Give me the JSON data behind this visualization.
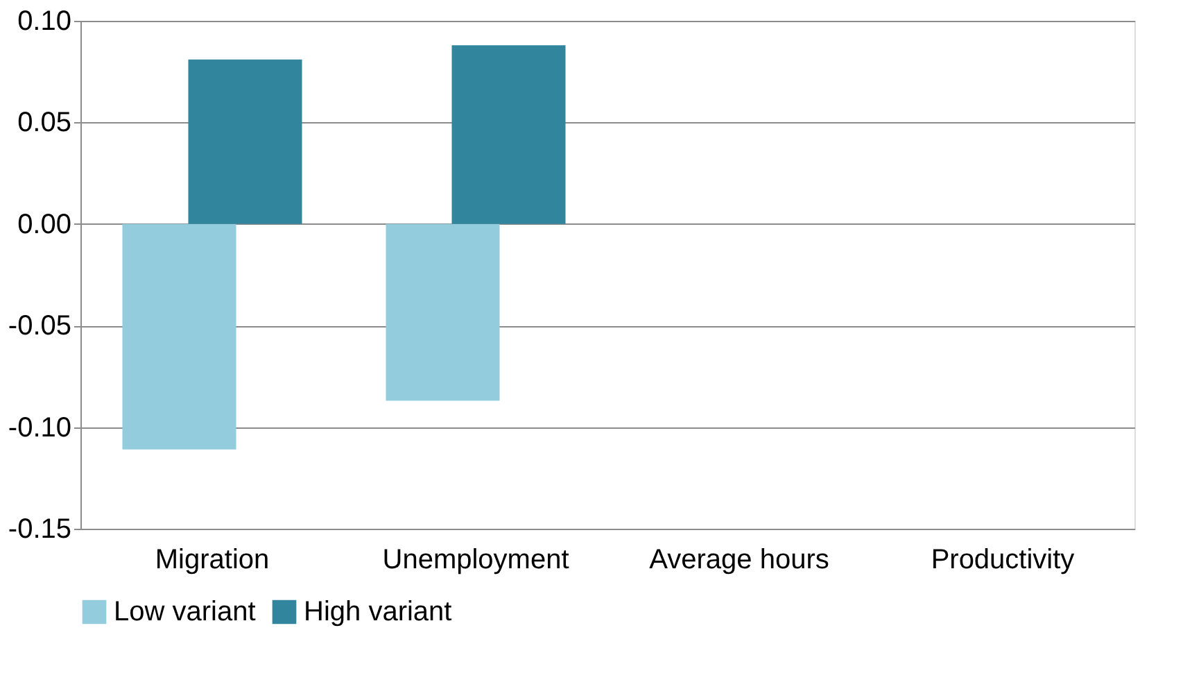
{
  "chart_data": {
    "type": "bar",
    "categories": [
      "Migration",
      "Unemployment",
      "Average hours",
      "Productivity"
    ],
    "series": [
      {
        "name": "Low variant",
        "color": "#93cddd",
        "values": [
          -0.111,
          -0.087,
          null,
          null
        ]
      },
      {
        "name": "High variant",
        "color": "#31859c",
        "values": [
          0.081,
          0.088,
          null,
          null
        ]
      }
    ],
    "ylim": [
      -0.15,
      0.1
    ],
    "yticks": [
      {
        "value": -0.15,
        "label": "-0.15"
      },
      {
        "value": -0.1,
        "label": "-0.10"
      },
      {
        "value": -0.05,
        "label": "-0.05"
      },
      {
        "value": 0,
        "label": "0.00"
      },
      {
        "value": 0.05,
        "label": "0.05"
      },
      {
        "value": 0.1,
        "label": "0.10"
      }
    ],
    "grid": "y",
    "legend": "bottom"
  }
}
